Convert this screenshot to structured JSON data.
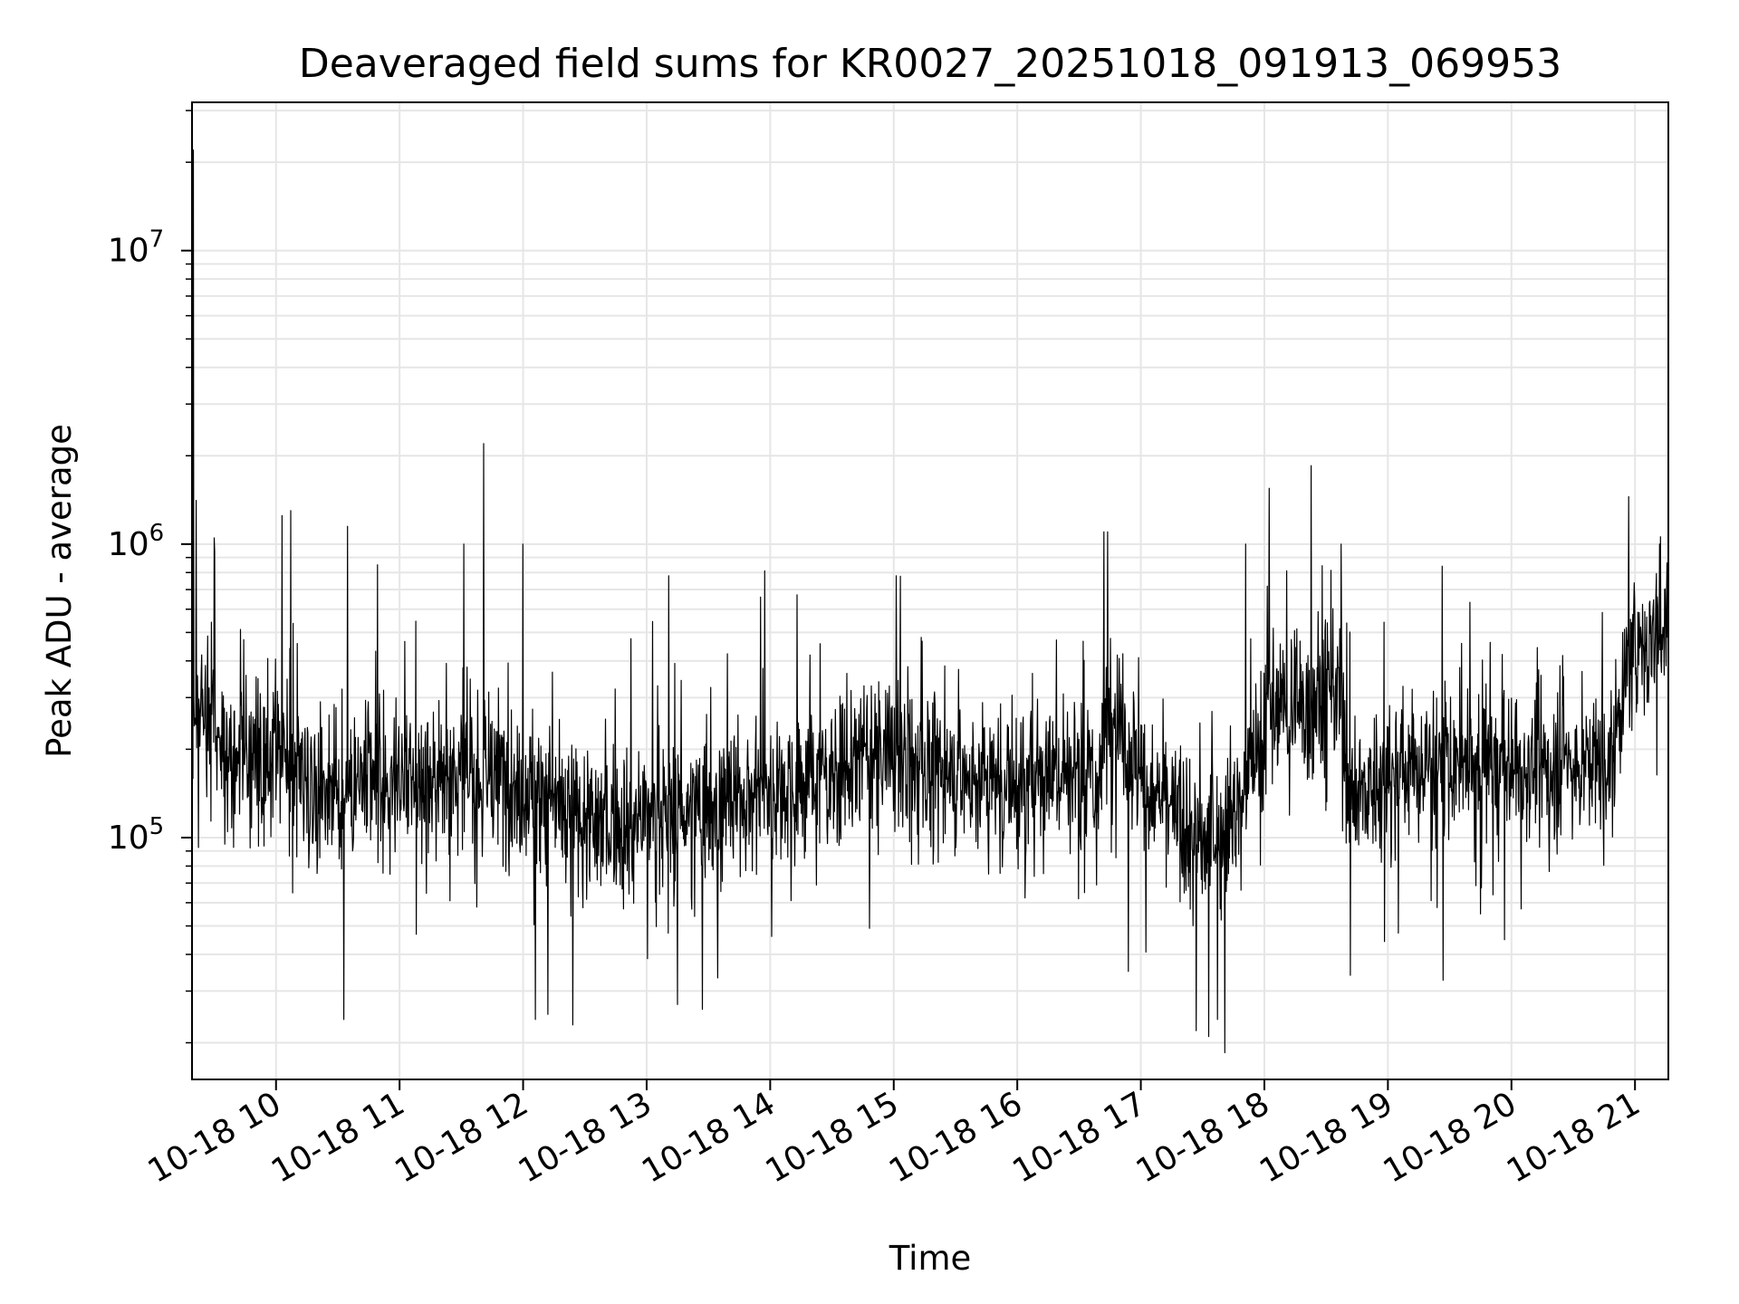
{
  "chart_data": {
    "type": "line",
    "title": "Deaveraged field sums for KR0027_20251018_091913_069953",
    "xlabel": "Time",
    "ylabel": "Peak ADU - average",
    "yscale": "log",
    "ylim": [
      15000,
      32000000
    ],
    "xlim_hours": [
      9.32,
      21.27
    ],
    "grid": true,
    "series_color": "#000000",
    "grid_color": "#e6e6e6",
    "x_ticks": [
      {
        "value": 10,
        "label": "10-18 10"
      },
      {
        "value": 11,
        "label": "10-18 11"
      },
      {
        "value": 12,
        "label": "10-18 12"
      },
      {
        "value": 13,
        "label": "10-18 13"
      },
      {
        "value": 14,
        "label": "10-18 14"
      },
      {
        "value": 15,
        "label": "10-18 15"
      },
      {
        "value": 16,
        "label": "10-18 16"
      },
      {
        "value": 17,
        "label": "10-18 17"
      },
      {
        "value": 18,
        "label": "10-18 18"
      },
      {
        "value": 19,
        "label": "10-18 19"
      },
      {
        "value": 20,
        "label": "10-18 20"
      },
      {
        "value": 21,
        "label": "10-18 21"
      }
    ],
    "y_ticks": [
      {
        "value": 100000,
        "base": "10",
        "exp": "5"
      },
      {
        "value": 1000000,
        "base": "10",
        "exp": "6"
      },
      {
        "value": 10000000,
        "base": "10",
        "exp": "7"
      }
    ],
    "baseline_profile": [
      {
        "t": 9.32,
        "v": 300000
      },
      {
        "t": 9.6,
        "v": 200000
      },
      {
        "t": 10.0,
        "v": 170000
      },
      {
        "t": 10.5,
        "v": 150000
      },
      {
        "t": 11.0,
        "v": 150000
      },
      {
        "t": 11.5,
        "v": 170000
      },
      {
        "t": 12.0,
        "v": 150000
      },
      {
        "t": 12.5,
        "v": 110000
      },
      {
        "t": 13.0,
        "v": 120000
      },
      {
        "t": 13.5,
        "v": 125000
      },
      {
        "t": 14.0,
        "v": 150000
      },
      {
        "t": 14.5,
        "v": 170000
      },
      {
        "t": 15.0,
        "v": 200000
      },
      {
        "t": 15.5,
        "v": 160000
      },
      {
        "t": 16.0,
        "v": 150000
      },
      {
        "t": 16.3,
        "v": 180000
      },
      {
        "t": 16.65,
        "v": 140000
      },
      {
        "t": 16.75,
        "v": 300000
      },
      {
        "t": 17.0,
        "v": 160000
      },
      {
        "t": 17.5,
        "v": 90000
      },
      {
        "t": 17.8,
        "v": 130000
      },
      {
        "t": 18.0,
        "v": 250000
      },
      {
        "t": 18.4,
        "v": 300000
      },
      {
        "t": 18.6,
        "v": 330000
      },
      {
        "t": 18.7,
        "v": 130000
      },
      {
        "t": 19.0,
        "v": 160000
      },
      {
        "t": 19.5,
        "v": 180000
      },
      {
        "t": 20.0,
        "v": 170000
      },
      {
        "t": 20.5,
        "v": 180000
      },
      {
        "t": 20.8,
        "v": 180000
      },
      {
        "t": 20.95,
        "v": 400000
      },
      {
        "t": 21.27,
        "v": 550000
      }
    ],
    "spikes": [
      {
        "t": 9.33,
        "v": 22000000
      },
      {
        "t": 9.5,
        "v": 1050000
      },
      {
        "t": 10.05,
        "v": 1250000
      },
      {
        "t": 10.12,
        "v": 1300000
      },
      {
        "t": 10.58,
        "v": 1150000
      },
      {
        "t": 10.82,
        "v": 850000
      },
      {
        "t": 11.68,
        "v": 2200000
      },
      {
        "t": 11.52,
        "v": 1000000
      },
      {
        "t": 12.0,
        "v": 1000000
      },
      {
        "t": 13.18,
        "v": 780000
      },
      {
        "t": 15.02,
        "v": 780000
      },
      {
        "t": 16.7,
        "v": 1100000
      },
      {
        "t": 16.73,
        "v": 1100000
      },
      {
        "t": 17.85,
        "v": 1000000
      },
      {
        "t": 18.04,
        "v": 1550000
      },
      {
        "t": 18.38,
        "v": 1850000
      },
      {
        "t": 18.62,
        "v": 1000000
      },
      {
        "t": 20.95,
        "v": 1450000
      },
      {
        "t": 21.2,
        "v": 1000000
      }
    ],
    "dips": [
      {
        "t": 10.55,
        "v": 24000
      },
      {
        "t": 12.1,
        "v": 24000
      },
      {
        "t": 12.2,
        "v": 25000
      },
      {
        "t": 12.4,
        "v": 23000
      },
      {
        "t": 13.25,
        "v": 27000
      },
      {
        "t": 13.45,
        "v": 26000
      },
      {
        "t": 17.45,
        "v": 22000
      },
      {
        "t": 17.55,
        "v": 21000
      },
      {
        "t": 17.68,
        "v": 18500
      },
      {
        "t": 17.62,
        "v": 24000
      },
      {
        "t": 16.9,
        "v": 35000
      }
    ]
  }
}
